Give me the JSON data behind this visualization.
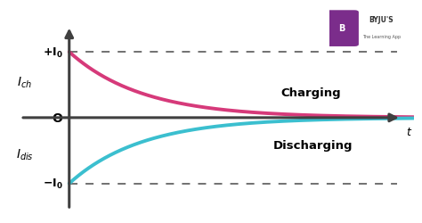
{
  "background_color": "#ffffff",
  "xlim": [
    0,
    10
  ],
  "ylim": [
    -1.5,
    1.7
  ],
  "charging_color": "#d63a7a",
  "discharging_color": "#3bbfcf",
  "axis_color": "#404040",
  "dashed_color": "#666666",
  "I0": 1.0,
  "tau": 1.8,
  "label_charging": "Charging",
  "label_discharging": "Discharging",
  "label_t": "t",
  "label_O": "O",
  "line_width": 2.8,
  "axis_linewidth": 2.2,
  "fig_width": 4.74,
  "fig_height": 2.51,
  "dpi": 100,
  "axis_x_start": 0.27,
  "axis_y_pos": 0.0,
  "yaxis_x_pos": 1.5,
  "yaxis_top": 1.4,
  "yaxis_bottom": -1.4
}
